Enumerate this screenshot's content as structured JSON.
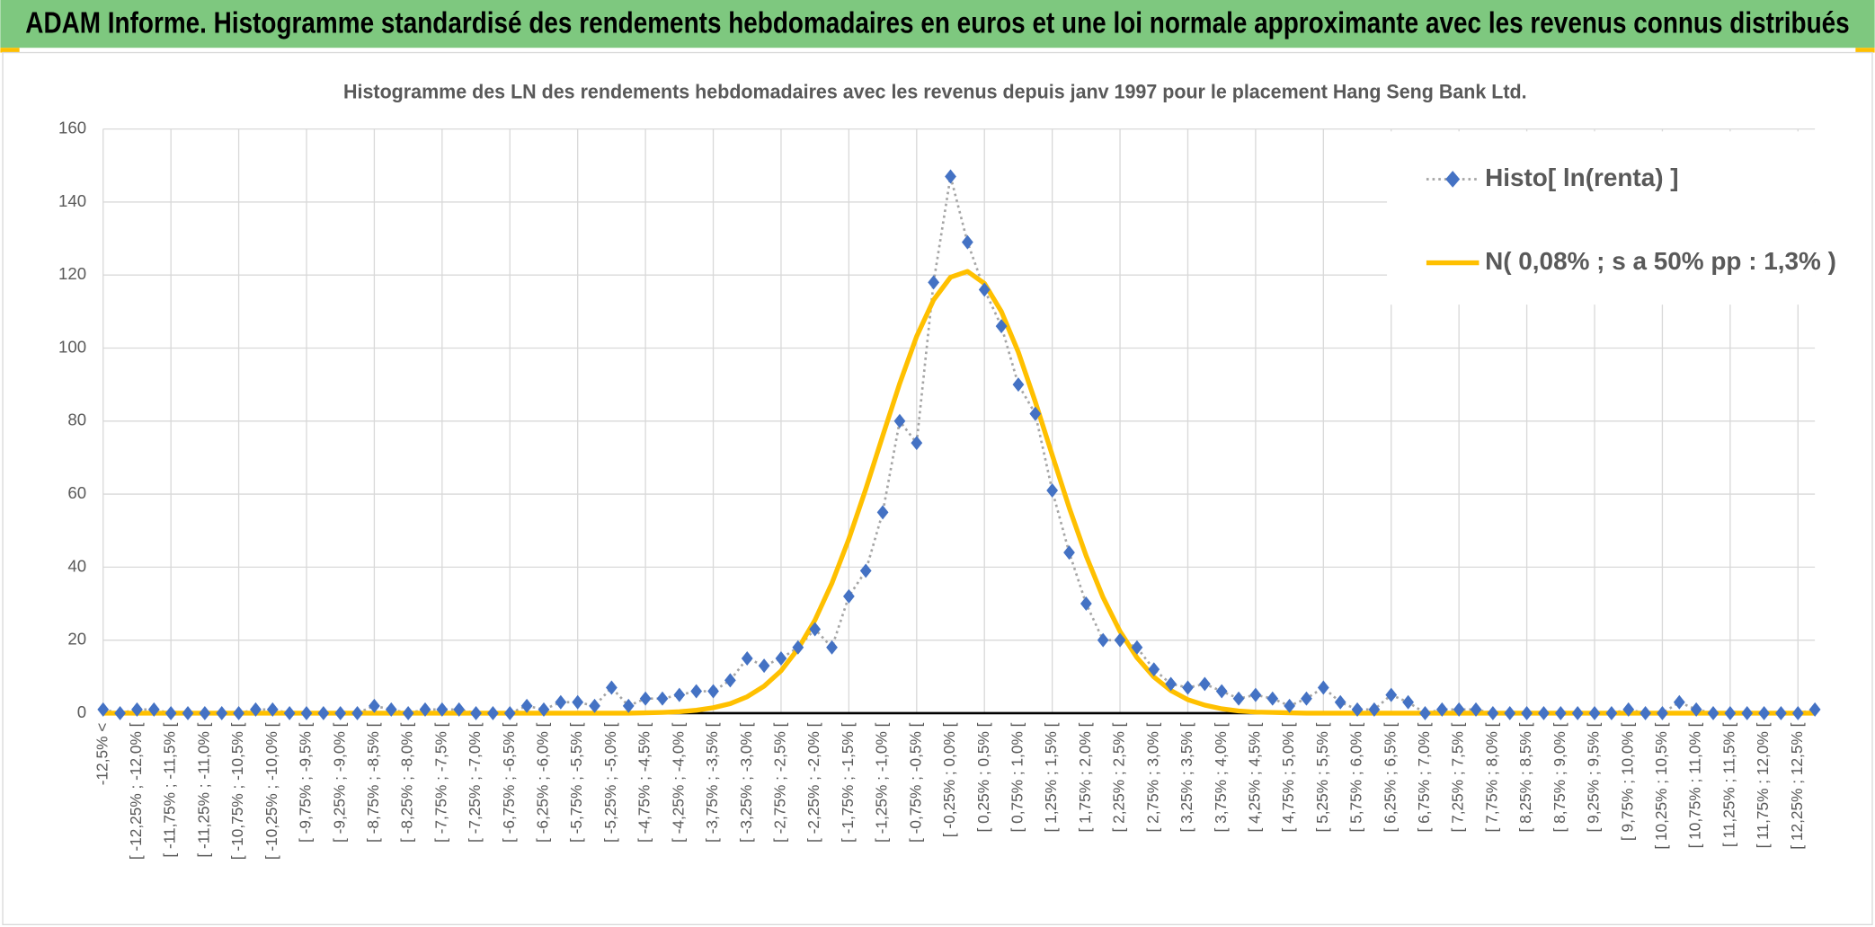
{
  "header": {
    "title": "ADAM Informe. Histogramme standardisé des rendements hebdomadaires en euros et une loi normale approximante avec les revenus connus distribués"
  },
  "chart_data": {
    "type": "line",
    "title": "Histogramme des LN des rendements hebdomadaires avec les revenus depuis janv 1997 pour le placement Hang Seng Bank Ltd.",
    "categories": [
      "-12,5% <",
      null,
      "[ -12,25% ; -12,0% [",
      null,
      "[ -11,75% ; -11,5% [",
      null,
      "[ -11,25% ; -11,0% [",
      null,
      "[ -10,75% ; -10,5% [",
      null,
      "[ -10,25% ; -10,0% [",
      null,
      "[ -9,75% ; -9,5% [",
      null,
      "[ -9,25% ; -9,0% [",
      null,
      "[ -8,75% ; -8,5% [",
      null,
      "[ -8,25% ; -8,0% [",
      null,
      "[ -7,75% ; -7,5% [",
      null,
      "[ -7,25% ; -7,0% [",
      null,
      "[ -6,75% ; -6,5% [",
      null,
      "[ -6,25% ; -6,0% [",
      null,
      "[ -5,75% ; -5,5% [",
      null,
      "[ -5,25% ; -5,0% [",
      null,
      "[ -4,75% ; -4,5% [",
      null,
      "[ -4,25% ; -4,0% [",
      null,
      "[ -3,75% ; -3,5% [",
      null,
      "[ -3,25% ; -3,0% [",
      null,
      "[ -2,75% ; -2,5% [",
      null,
      "[ -2,25% ; -2,0% [",
      null,
      "[ -1,75% ; -1,5% [",
      null,
      "[ -1,25% ; -1,0% [",
      null,
      "[ -0,75% ; -0,5% [",
      null,
      "[ -0,25% ; 0,0% [",
      null,
      "[ 0,25% ; 0,5% [",
      null,
      "[ 0,75% ; 1,0% [",
      null,
      "[ 1,25% ; 1,5% [",
      null,
      "[ 1,75% ; 2,0% [",
      null,
      "[ 2,25% ; 2,5% [",
      null,
      "[ 2,75% ; 3,0% [",
      null,
      "[ 3,25% ; 3,5% [",
      null,
      "[ 3,75% ; 4,0% [",
      null,
      "[ 4,25% ; 4,5% [",
      null,
      "[ 4,75% ; 5,0% [",
      null,
      "[ 5,25% ; 5,5% [",
      null,
      "[ 5,75% ; 6,0% [",
      null,
      "[ 6,25% ; 6,5% [",
      null,
      "[ 6,75% ; 7,0% [",
      null,
      "[ 7,25% ; 7,5% [",
      null,
      "[ 7,75% ; 8,0% [",
      null,
      "[ 8,25% ; 8,5% [",
      null,
      "[ 8,75% ; 9,0% [",
      null,
      "[ 9,25% ; 9,5% [",
      null,
      "[ 9,75% ; 10,0% [",
      null,
      "[ 10,25% ; 10,5% [",
      null,
      "[ 10,75% ; 11,0% [",
      null,
      "[ 11,25% ; 11,5% [",
      null,
      "[ 11,75% ; 12,0% [",
      null,
      "[ 12,25% ; 12,5% [",
      null
    ],
    "series": [
      {
        "name": "Histo[ ln(renta) ]",
        "color": "#4472c4",
        "line_color": "#a5a5a5",
        "line_style": "dotted",
        "marker": "diamond",
        "values": [
          1,
          0,
          1,
          1,
          0,
          0,
          0,
          0,
          0,
          1,
          1,
          0,
          0,
          0,
          0,
          0,
          2,
          1,
          0,
          1,
          1,
          1,
          0,
          0,
          0,
          2,
          1,
          3,
          3,
          2,
          7,
          2,
          4,
          4,
          5,
          6,
          6,
          9,
          15,
          13,
          15,
          18,
          23,
          18,
          32,
          39,
          55,
          80,
          74,
          118,
          147,
          129,
          116,
          106,
          90,
          82,
          61,
          44,
          30,
          20,
          20,
          18,
          12,
          8,
          7,
          8,
          6,
          4,
          5,
          4,
          2,
          4,
          7,
          3,
          1,
          1,
          5,
          3,
          0,
          1,
          1,
          1,
          0,
          0,
          0,
          0,
          0,
          0,
          0,
          0,
          1,
          0,
          0,
          3,
          1,
          0,
          0,
          0,
          0,
          0,
          0,
          1
        ]
      },
      {
        "name": "N( 0,08% ; s a 50% pp : 1,3% )",
        "color": "#ffc000",
        "line_style": "solid",
        "marker": "none",
        "values": [
          0,
          0,
          0,
          0,
          0,
          0,
          0,
          0,
          0,
          0,
          0,
          0,
          0,
          0,
          0,
          0,
          0,
          0,
          0,
          0,
          0,
          0,
          0,
          0,
          0,
          0,
          0,
          0,
          0,
          0,
          0,
          0,
          0.1,
          0.2,
          0.4,
          0.8,
          1.5,
          2.6,
          4.5,
          7.4,
          11.6,
          17.6,
          25.5,
          35.6,
          47.7,
          61.4,
          76.0,
          90.3,
          103.2,
          113.2,
          119.4,
          121,
          117.7,
          110.0,
          98.9,
          85.3,
          70.7,
          56.3,
          43.1,
          31.7,
          22.4,
          15.2,
          9.9,
          6.2,
          3.7,
          2.2,
          1.2,
          0.6,
          0.3,
          0.2,
          0.1,
          0,
          0,
          0,
          0,
          0,
          0,
          0,
          0,
          0,
          0,
          0,
          0,
          0,
          0,
          0,
          0,
          0,
          0,
          0,
          0,
          0,
          0,
          0,
          0,
          0,
          0,
          0,
          0,
          0,
          0,
          0
        ]
      }
    ],
    "ylim": [
      0,
      160
    ],
    "yticks": [
      0,
      20,
      40,
      60,
      80,
      100,
      120,
      140,
      160
    ],
    "grid": true,
    "legend": "top-right"
  }
}
